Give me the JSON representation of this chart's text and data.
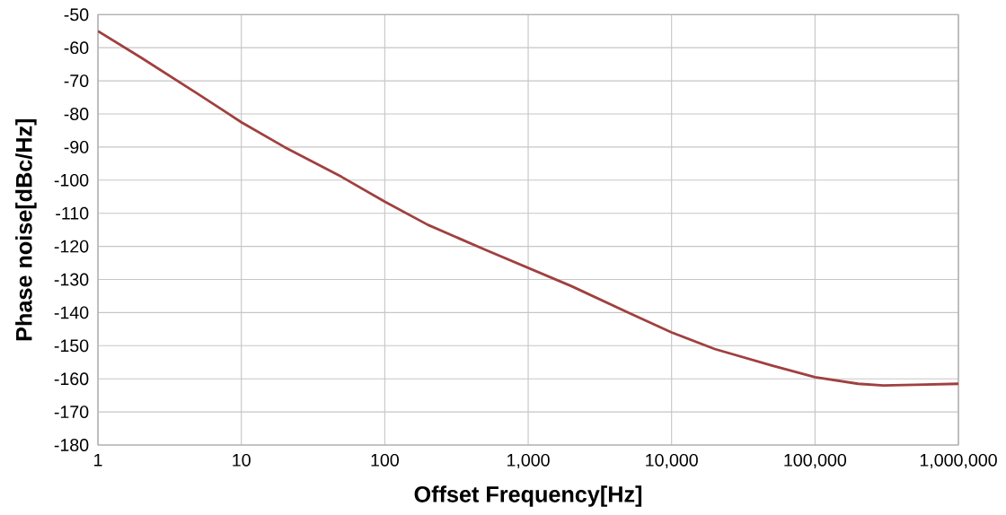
{
  "chart_data": {
    "type": "line",
    "xlabel": "Offset Frequency[Hz]",
    "ylabel": "Phase noise[dBc/Hz]",
    "log": "x",
    "grid": true,
    "xlim": [
      1,
      1000000
    ],
    "ylim": [
      -180,
      -50
    ],
    "xticks": [
      1,
      10,
      100,
      {
        "value": 1000,
        "label": "1,000"
      },
      {
        "value": 10000,
        "label": "10,000"
      },
      {
        "value": 100000,
        "label": "100,000"
      },
      {
        "value": 1000000,
        "label": "1,000,000"
      }
    ],
    "yticks": [
      -180,
      -170,
      -160,
      -150,
      -140,
      -130,
      -120,
      -110,
      -100,
      -90,
      -80,
      -70,
      -60,
      -50
    ],
    "series": [
      {
        "color": "#a0403f",
        "x": [
          1,
          2,
          5,
          10,
          20,
          50,
          100,
          200,
          500,
          1000,
          2000,
          5000,
          10000,
          20000,
          50000,
          100000,
          200000,
          300000,
          500000,
          1000000
        ],
        "values": [
          -55,
          -63,
          -74,
          -82.5,
          -90,
          -99,
          -106.5,
          -113.5,
          -121,
          -126.5,
          -132,
          -140,
          -146,
          -151,
          -156,
          -159.5,
          -161.5,
          -162,
          -161.8,
          -161.5
        ]
      }
    ]
  }
}
